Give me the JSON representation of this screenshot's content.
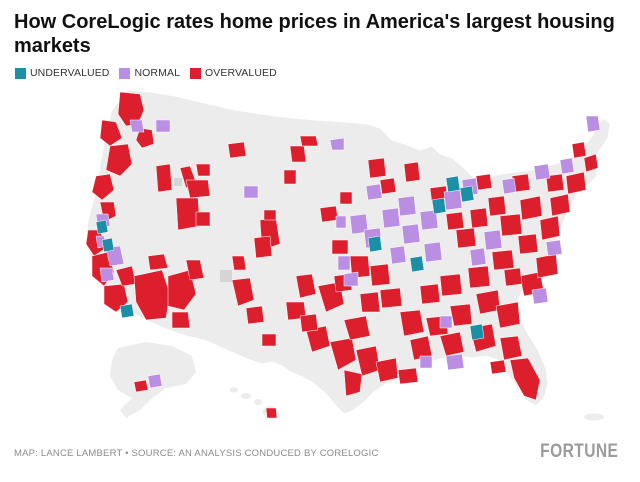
{
  "title": "How CoreLogic rates home prices in America's largest housing markets",
  "legend": [
    {
      "label": "UNDERVALUED",
      "color": "#1a8fa6"
    },
    {
      "label": "NORMAL",
      "color": "#b98ee3"
    },
    {
      "label": "OVERVALUED",
      "color": "#dd1f2d"
    }
  ],
  "map": {
    "region": "United States",
    "land_color": "#ececec",
    "unrated_color": "#d5d5d5"
  },
  "credit": "MAP: LANCE LAMBERT • SOURCE: AN ANALYSIS CONDUCED BY CORELOGIC",
  "brand": "FORTUNE"
}
